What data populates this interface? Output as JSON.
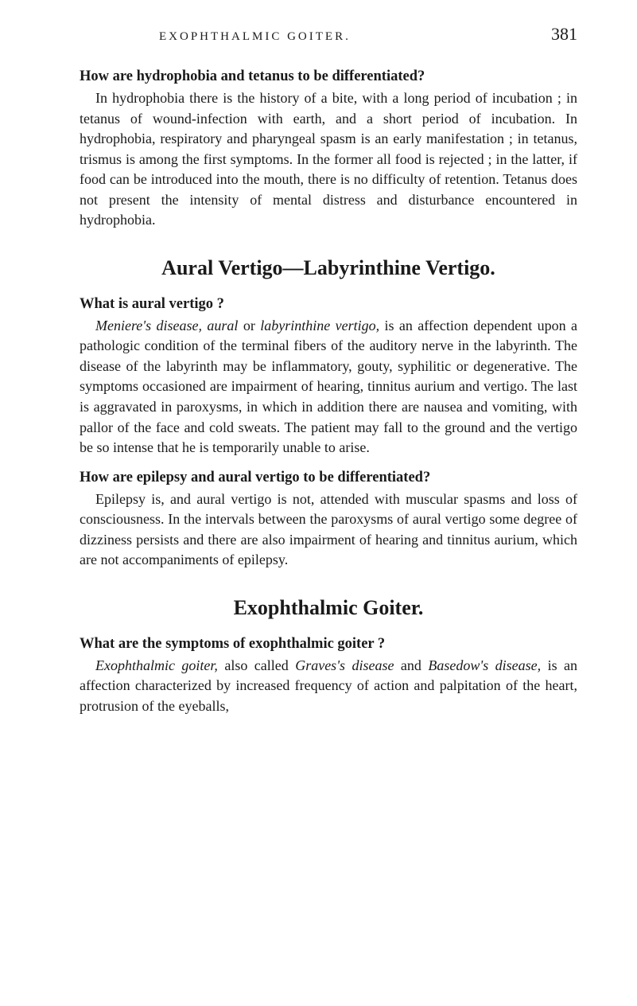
{
  "header": {
    "running_head": "EXOPHTHALMIC GOITER.",
    "page_number": "381"
  },
  "sections": [
    {
      "question": "How are hydrophobia and tetanus to be differentiated?",
      "body": "In hydrophobia there is the history of a bite, with a long period of incubation ; in tetanus of wound-infection with earth, and a short period of incubation. In hydrophobia, respiratory and pharyngeal spasm is an early manifestation ; in tetanus, trismus is among the first symptoms. In the former all food is rejected ; in the latter, if food can be introduced into the mouth, there is no difficulty of retention. Tetanus does not present the intensity of mental distress and disturbance encountered in hydrophobia."
    }
  ],
  "main_heading": "Aural Vertigo—Labyrinthine Vertigo.",
  "q2": {
    "question": "What is aural vertigo ?",
    "prefix": "Meniere's disease, aural",
    "mid": " or ",
    "italic2": "labyrinthine vertigo,",
    "rest": " is an affection dependent upon a pathologic condition of the terminal fibers of the auditory nerve in the labyrinth. The disease of the labyrinth may be inflammatory, gouty, syphilitic or degenerative. The symptoms occasioned are impairment of hearing, tinnitus aurium and vertigo. The last is aggravated in paroxysms, in which in addition there are nausea and vomiting, with pallor of the face and cold sweats. The patient may fall to the ground and the vertigo be so intense that he is temporarily unable to arise."
  },
  "q3": {
    "question": "How are epilepsy and aural vertigo to be differentiated?",
    "body": "Epilepsy is, and aural vertigo is not, attended with muscular spasms and loss of consciousness. In the intervals between the paroxysms of aural vertigo some degree of dizziness persists and there are also impairment of hearing and tinnitus aurium, which are not accompaniments of epilepsy."
  },
  "sub_heading": "Exophthalmic Goiter.",
  "q4": {
    "question": "What are the symptoms of exophthalmic goiter ?",
    "italic1": "Exophthalmic goiter,",
    "mid1": " also called ",
    "italic2": "Graves's disease",
    "mid2": " and ",
    "italic3": "Basedow's disease,",
    "rest": " is an affection characterized by increased frequency of action and palpitation of the heart, protrusion of the eyeballs,"
  },
  "colors": {
    "background": "#ffffff",
    "text": "#1a1a1a"
  },
  "typography": {
    "body_font_size": 18,
    "question_font_size": 18.5,
    "heading_font_size": 26,
    "page_number_font_size": 22,
    "running_head_font_size": 15,
    "line_height": 1.42
  }
}
